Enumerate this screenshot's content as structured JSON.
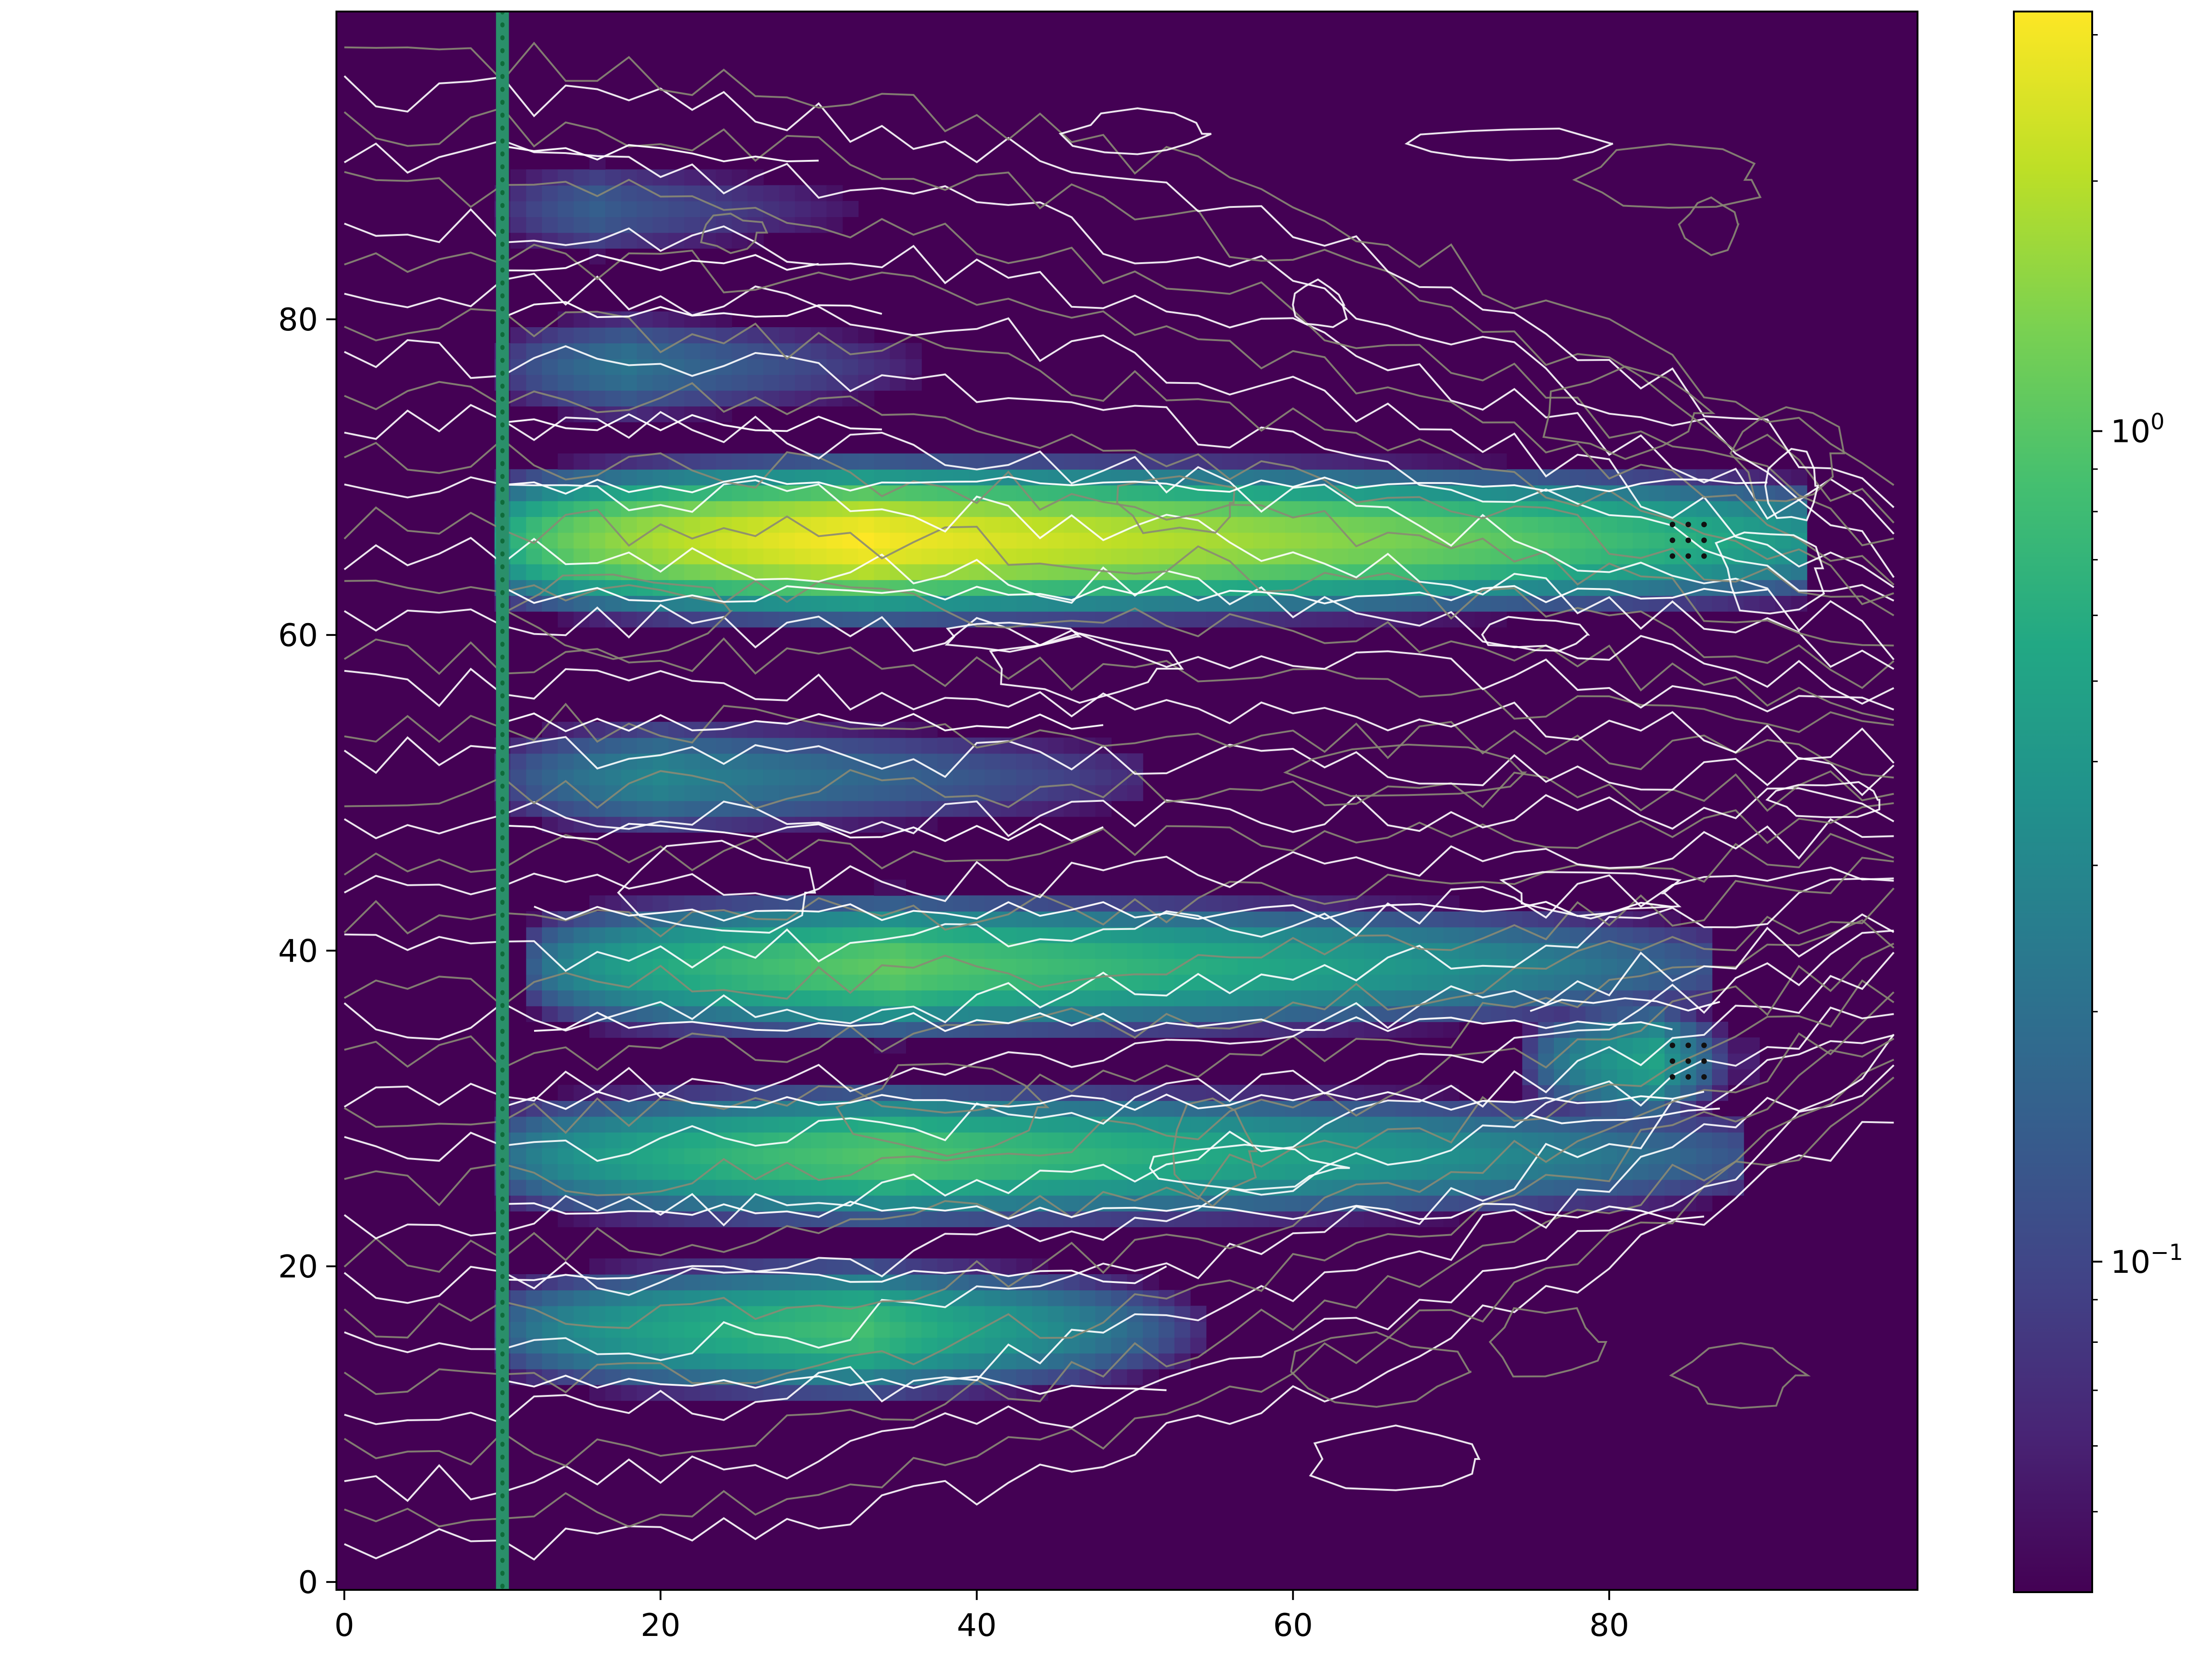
{
  "chart_data": {
    "type": "heatmap",
    "title": "",
    "xlabel": "",
    "ylabel": "",
    "xlim": [
      0,
      99
    ],
    "ylim": [
      0,
      99
    ],
    "x_ticks": [
      0,
      20,
      40,
      60,
      80
    ],
    "y_ticks": [
      0,
      20,
      40,
      60,
      80
    ],
    "colormap": "viridis",
    "colorbar": {
      "scale": "log",
      "range": [
        0.04,
        3.2
      ],
      "major_ticks": [
        {
          "value": 1,
          "base": "10",
          "exp": "0"
        },
        {
          "value": 0.1,
          "base": "10",
          "exp": "−1"
        }
      ],
      "minor_ticks": [
        0.05,
        0.06,
        0.07,
        0.08,
        0.09,
        0.2,
        0.3,
        0.4,
        0.5,
        0.6,
        0.7,
        0.8,
        0.9,
        2,
        3
      ]
    },
    "background_value": 0.04,
    "bands": [
      {
        "y": 66,
        "x_start": 10,
        "x_end": 90,
        "peak_x": 33,
        "peak_value": 3.2,
        "tail_value": 0.45
      },
      {
        "y": 39,
        "x_start": 12,
        "x_end": 84,
        "peak_x": 35,
        "peak_value": 1.1,
        "tail_value": 0.15
      },
      {
        "y": 27,
        "x_start": 10,
        "x_end": 86,
        "peak_x": 35,
        "peak_value": 1.0,
        "tail_value": 0.15
      },
      {
        "y": 16,
        "x_start": 10,
        "x_end": 52,
        "peak_x": 33,
        "peak_value": 0.85,
        "tail_value": 0.12
      },
      {
        "y": 51,
        "x_start": 10,
        "x_end": 48,
        "peak_x": 20,
        "peak_value": 0.3,
        "tail_value": 0.08
      },
      {
        "y": 77,
        "x_start": 10,
        "x_end": 34,
        "peak_x": 18,
        "peak_value": 0.22,
        "tail_value": 0.07
      },
      {
        "y": 87,
        "x_start": 10,
        "x_end": 30,
        "peak_x": 16,
        "peak_value": 0.15,
        "tail_value": 0.06
      },
      {
        "y": 33,
        "x_start": 75,
        "x_end": 87,
        "peak_x": 83,
        "peak_value": 0.5,
        "tail_value": 0.1
      }
    ],
    "vertical_line": {
      "x": 10,
      "color": "#1f9e63"
    },
    "marker_clusters": [
      {
        "x": [
          84,
          85,
          86
        ],
        "y": [
          65,
          66,
          67
        ]
      },
      {
        "x": [
          84,
          85,
          86
        ],
        "y": [
          32,
          33,
          34
        ]
      }
    ],
    "contour_colors": [
      "#ffffff",
      "#8a8a74"
    ]
  }
}
